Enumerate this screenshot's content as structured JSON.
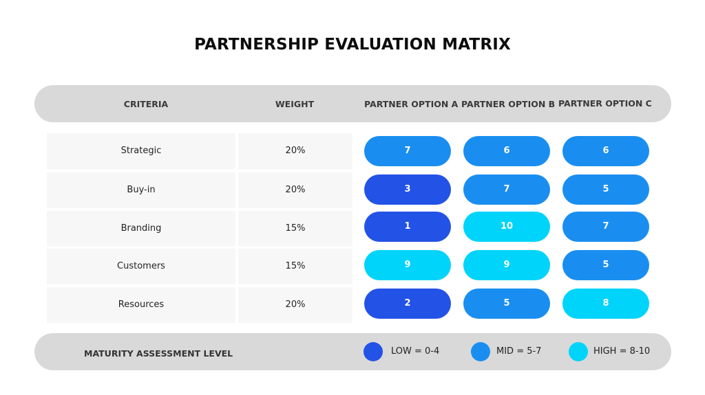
{
  "title": "PARTNERSHIP EVALUATION MATRIX",
  "colors": {
    "low": "#2352e6",
    "mid": "#1a8ef0",
    "high": "#00d4fa",
    "header_bg": "#d9d9d9",
    "cell_bg": "#f7f7f7"
  },
  "header": {
    "criteria": "CRITERIA",
    "weight": "WEIGHT",
    "option_a": "PARTNER OPTION A",
    "option_b": "PARTNER OPTION B",
    "option_c": "PARTNER OPTION C"
  },
  "chart_data": {
    "type": "table",
    "title": "PARTNERSHIP EVALUATION MATRIX",
    "columns": [
      "CRITERIA",
      "WEIGHT",
      "PARTNER OPTION A",
      "PARTNER OPTION B",
      "PARTNER OPTION C"
    ],
    "rows": [
      {
        "criteria": "Strategic",
        "weight": "20%",
        "scores": [
          7,
          6,
          6
        ]
      },
      {
        "criteria": "Buy-in",
        "weight": "20%",
        "scores": [
          3,
          7,
          5
        ]
      },
      {
        "criteria": "Branding",
        "weight": "15%",
        "scores": [
          1,
          10,
          7
        ]
      },
      {
        "criteria": "Customers",
        "weight": "15%",
        "scores": [
          9,
          9,
          5
        ]
      },
      {
        "criteria": "Resources",
        "weight": "20%",
        "scores": [
          2,
          5,
          8
        ]
      }
    ],
    "levels": [
      {
        "name": "low",
        "min": 0,
        "max": 4
      },
      {
        "name": "mid",
        "min": 5,
        "max": 7
      },
      {
        "name": "high",
        "min": 8,
        "max": 10
      }
    ]
  },
  "footer": {
    "label": "MATURITY ASSESSMENT LEVEL",
    "legend": [
      {
        "text": "LOW = 0-4",
        "level": "low"
      },
      {
        "text": "MID = 5-7",
        "level": "mid"
      },
      {
        "text": "HIGH = 8-10",
        "level": "high"
      }
    ]
  }
}
